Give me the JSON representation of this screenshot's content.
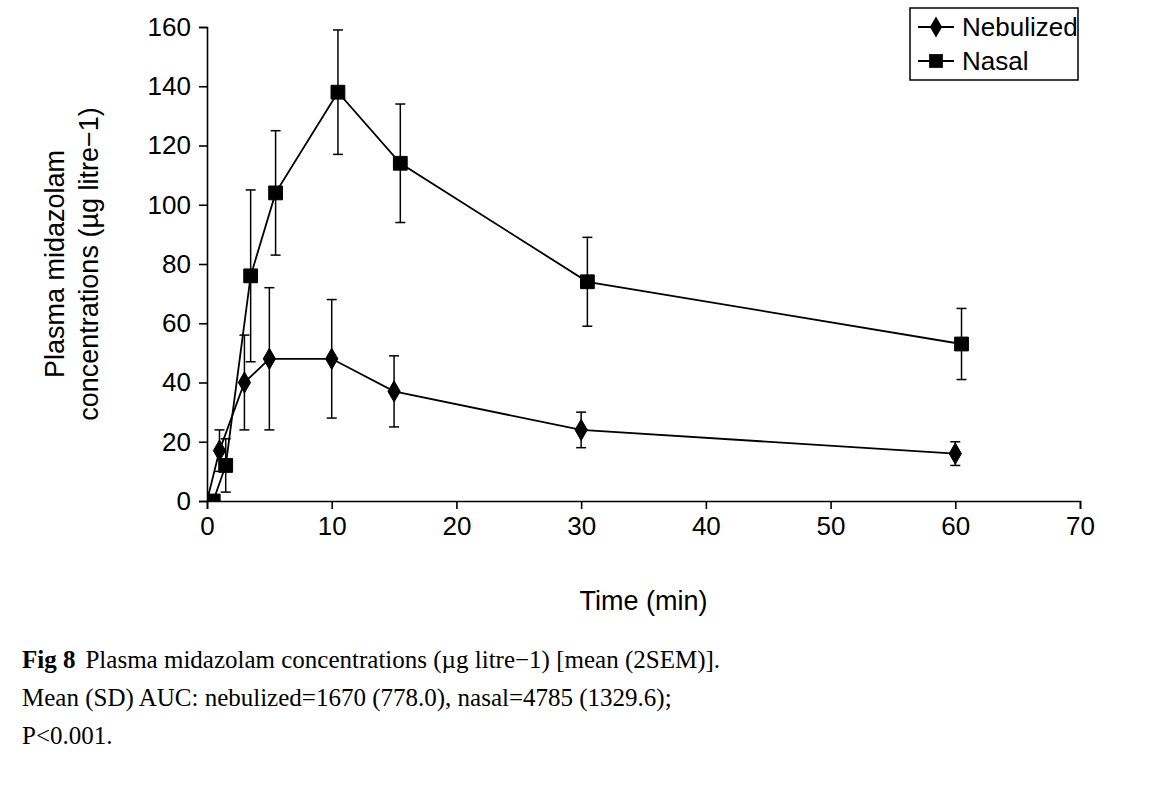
{
  "chart_data": {
    "type": "line",
    "x_label": "Time (min)",
    "y_label": [
      "Plasma midazolam",
      "concentrations (µg litre−1)"
    ],
    "xlim": [
      0,
      70
    ],
    "xticks": [
      0,
      10,
      20,
      30,
      40,
      50,
      60,
      70
    ],
    "ylim": [
      0,
      160
    ],
    "yticks": [
      0,
      20,
      40,
      60,
      80,
      100,
      120,
      140,
      160
    ],
    "grid": false,
    "legend": "top-right",
    "series": [
      {
        "name": "Nebulized",
        "color": "#000000",
        "marker": "diamond",
        "line_style": "solid",
        "x": [
          0,
          1,
          3,
          5,
          10,
          15,
          30,
          60
        ],
        "values": [
          0,
          17,
          40,
          48,
          48,
          37,
          24,
          16
        ],
        "errors": [
          0,
          7,
          16,
          24,
          20,
          12,
          6,
          4
        ]
      },
      {
        "name": "Nasal",
        "color": "#000000",
        "marker": "square",
        "line_style": "solid",
        "x": [
          0.5,
          1.5,
          3.5,
          5.5,
          10.5,
          15.5,
          30.5,
          60.5
        ],
        "values": [
          0,
          12,
          76,
          104,
          138,
          114,
          74,
          53
        ],
        "errors": [
          0,
          9,
          29,
          21,
          21,
          20,
          15,
          12
        ]
      }
    ],
    "annotations": [
      "Fig 8",
      "Plasma midazolam concentrations (µg litre−1) [mean (2SEM)].",
      "Mean (SD) AUC: nebulized=1670 (778.0), nasal=4785 (1329.6);",
      "P<0.001."
    ]
  }
}
